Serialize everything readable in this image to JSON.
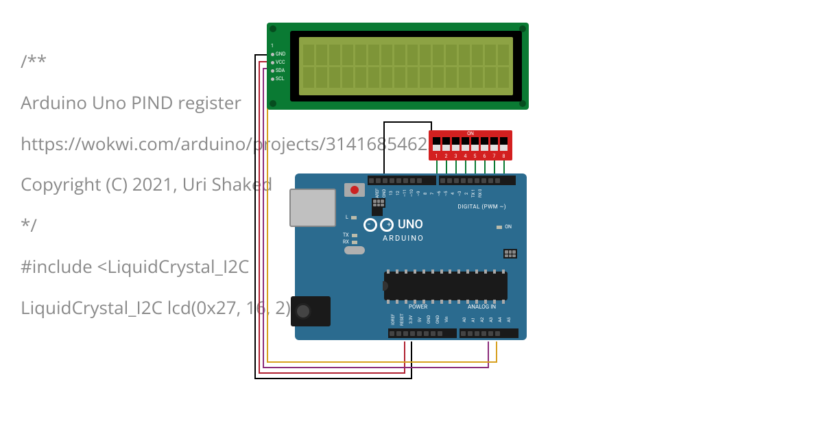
{
  "background_code": {
    "lines": [
      "/**",
      "  Arduino Uno PIND register",
      "",
      "  https://wokwi.com/arduino/projects/314168546236039745",
      "",
      "  Copyright (C) 2021, Uri Shaked",
      "*/",
      "",
      "#include <LiquidCrystal_I2C",
      "",
      "LiquidCrystal_I2C lcd(0x27, 16, 2);"
    ],
    "color": "#8a8a8a",
    "fontsize": 26
  },
  "lcd": {
    "type": "lcd-16x2-i2c",
    "body_color": "#0a7a33",
    "screen_color": "#8da344",
    "char_color": "#7e9538",
    "cols": 16,
    "rows": 2,
    "pins": [
      "GND",
      "VCC",
      "SDA",
      "SCL"
    ],
    "pin_label_color": "#ffffff"
  },
  "dip_switch": {
    "type": "dip-8",
    "body_color": "#d32020",
    "slot_color": "#000000",
    "slider_color": "#e0e0e0",
    "on_label": "ON",
    "count": 8,
    "numbers": [
      "1",
      "2",
      "3",
      "4",
      "5",
      "6",
      "7",
      "8"
    ],
    "positions": [
      "off",
      "off",
      "off",
      "off",
      "off",
      "off",
      "off",
      "off"
    ],
    "lead_color": "#0a7a33"
  },
  "arduino": {
    "board_color": "#2b6b8f",
    "logo_text": "UNO",
    "brand_text": "ARDUINO",
    "digital_label": "DIGITAL (PWM ~)",
    "power_label": "POWER",
    "analog_label": "ANALOG IN",
    "top_pins": [
      "",
      "AREF",
      "GND",
      "13",
      "12",
      "~11",
      "~10",
      "~9",
      "8",
      "7",
      "~6",
      "~5",
      "4",
      "~3",
      "2",
      "TX 1",
      "RX 0"
    ],
    "bottom_pins": [
      "IOREF",
      "RESET",
      "3.3V",
      "5V",
      "GND",
      "GND",
      "Vin",
      "",
      "A0",
      "A1",
      "A2",
      "A3",
      "A4",
      "A5"
    ],
    "led_labels": {
      "l": "L",
      "tx": "TX",
      "rx": "RX",
      "on": "ON"
    }
  },
  "wires": {
    "gnd": {
      "color": "#000000"
    },
    "vcc": {
      "color": "#b02030"
    },
    "sda": {
      "color": "#8a2a7a"
    },
    "scl": {
      "color": "#d7a020"
    },
    "dip_to_gnd": {
      "color": "#000000"
    }
  }
}
